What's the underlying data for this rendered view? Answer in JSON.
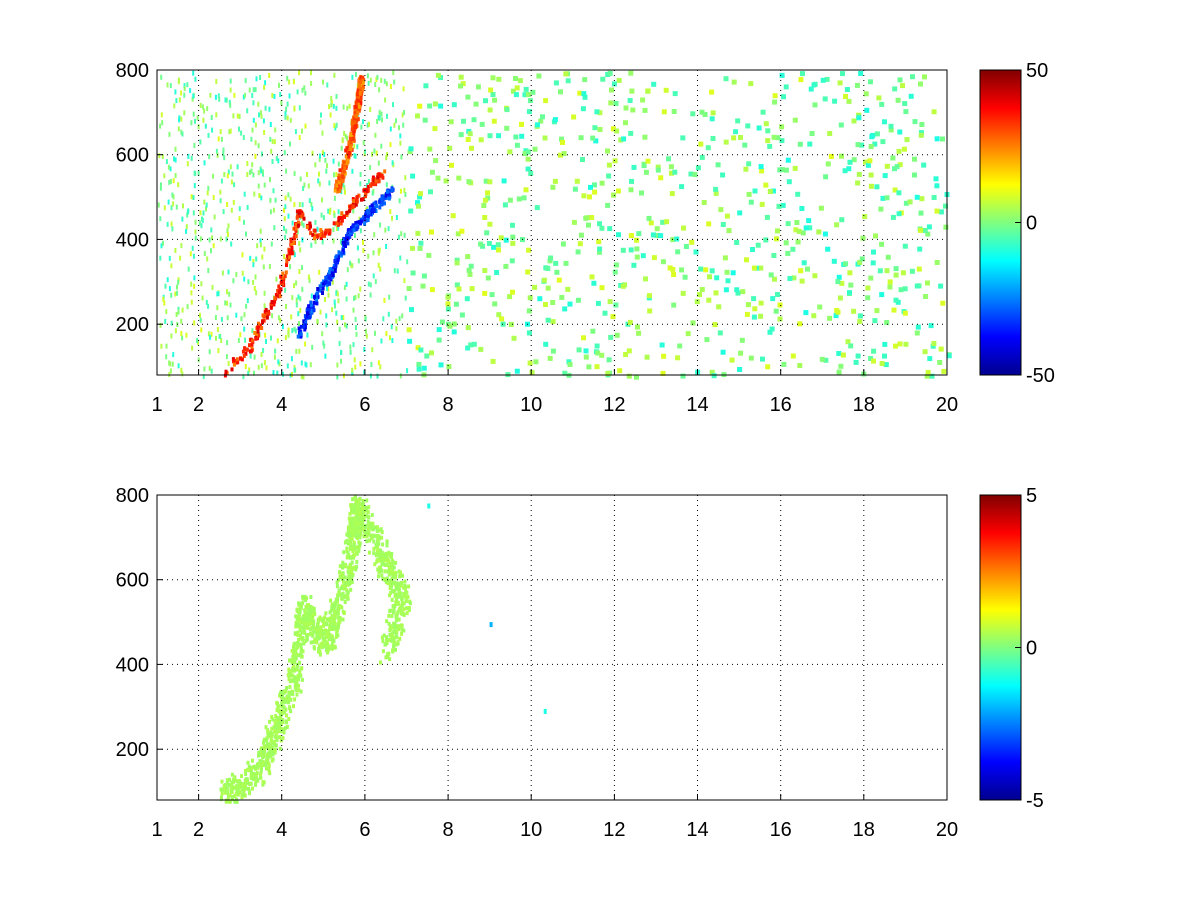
{
  "chart_data": [
    {
      "type": "heatmap",
      "title": "",
      "xlabel": "",
      "ylabel": "",
      "xlim": [
        1,
        20
      ],
      "ylim": [
        80,
        800
      ],
      "x_ticks": [
        "1",
        "2",
        "4",
        "6",
        "8",
        "10",
        "12",
        "14",
        "16",
        "18",
        "20"
      ],
      "x_tick_values": [
        1,
        2,
        4,
        6,
        8,
        10,
        12,
        14,
        16,
        18,
        20
      ],
      "y_ticks": [
        "200",
        "400",
        "600",
        "800"
      ],
      "y_tick_values": [
        200,
        400,
        600,
        800
      ],
      "grid": true,
      "colormap": "jet",
      "colorbar": {
        "min": -50,
        "max": 50,
        "ticks": [
          "50",
          "0",
          "-50"
        ],
        "tick_values": [
          50,
          0,
          -50
        ]
      },
      "features": [
        {
          "name": "ridge",
          "points": [
            [
              2.6,
              90
            ],
            [
              3.2,
              150
            ],
            [
              3.5,
              210
            ],
            [
              3.9,
              280
            ],
            [
              4.2,
              380
            ],
            [
              4.4,
              470
            ],
            [
              4.8,
              410
            ],
            [
              5.2,
              430
            ],
            [
              5.6,
              480
            ],
            [
              6.0,
              520
            ],
            [
              6.4,
              560
            ]
          ],
          "value": 35
        },
        {
          "name": "upper-ridge",
          "points": [
            [
              5.3,
              520
            ],
            [
              5.6,
              620
            ],
            [
              5.8,
              720
            ],
            [
              5.9,
              790
            ]
          ],
          "value": 30
        },
        {
          "name": "negative-band",
          "points": [
            [
              4.4,
              180
            ],
            [
              4.8,
              270
            ],
            [
              5.2,
              330
            ],
            [
              5.6,
              420
            ],
            [
              6.1,
              470
            ],
            [
              6.6,
              520
            ]
          ],
          "value": -35
        }
      ],
      "noise_value_range": [
        -10,
        10
      ]
    },
    {
      "type": "heatmap",
      "title": "",
      "xlabel": "",
      "ylabel": "",
      "xlim": [
        1,
        20
      ],
      "ylim": [
        80,
        800
      ],
      "x_ticks": [
        "1",
        "2",
        "4",
        "6",
        "8",
        "10",
        "12",
        "14",
        "16",
        "18",
        "20"
      ],
      "x_tick_values": [
        1,
        2,
        4,
        6,
        8,
        10,
        12,
        14,
        16,
        18,
        20
      ],
      "y_ticks": [
        "200",
        "400",
        "600",
        "800"
      ],
      "y_tick_values": [
        200,
        400,
        600,
        800
      ],
      "grid": true,
      "colormap": "jet",
      "colorbar": {
        "min": -5,
        "max": 5,
        "ticks": [
          "5",
          "0",
          "-5"
        ],
        "tick_values": [
          5,
          0,
          -5
        ]
      },
      "features": [
        {
          "name": "region",
          "points": [
            [
              2.5,
              90
            ],
            [
              3.4,
              150
            ],
            [
              3.8,
              240
            ],
            [
              4.3,
              380
            ],
            [
              4.5,
              540
            ],
            [
              5.0,
              450
            ],
            [
              5.4,
              560
            ],
            [
              5.7,
              700
            ],
            [
              5.8,
              790
            ],
            [
              6.4,
              650
            ],
            [
              6.9,
              560
            ],
            [
              6.5,
              430
            ]
          ],
          "value": 0.4
        }
      ],
      "outliers": [
        [
          9.0,
          500,
          -2
        ],
        [
          10.3,
          295,
          -1
        ],
        [
          7.5,
          780,
          -1
        ]
      ]
    }
  ]
}
